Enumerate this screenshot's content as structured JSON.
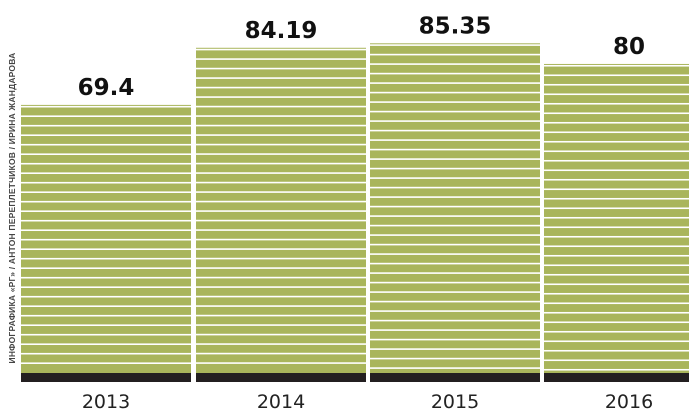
{
  "credit": "ИНФОГРАФИКА «РГ» / АНТОН ПЕРЕПЛЕТЧИКОВ / ИРИНА ЖАНДАРОВА",
  "colors": {
    "bar": "#a9b55b",
    "stripe": "#ffffff",
    "baseline": "#231f20",
    "value_text": "#111111",
    "tick_text": "#222222"
  },
  "chart_data": {
    "type": "bar",
    "categories": [
      "2013",
      "2014",
      "2015",
      "2016"
    ],
    "values": [
      69.4,
      84.19,
      85.35,
      80
    ],
    "value_labels": [
      "69.4",
      "84.19",
      "85.35",
      "80"
    ],
    "title": "",
    "xlabel": "",
    "ylabel": "",
    "ylim": [
      0,
      100
    ],
    "grid": false,
    "legend": "none"
  }
}
